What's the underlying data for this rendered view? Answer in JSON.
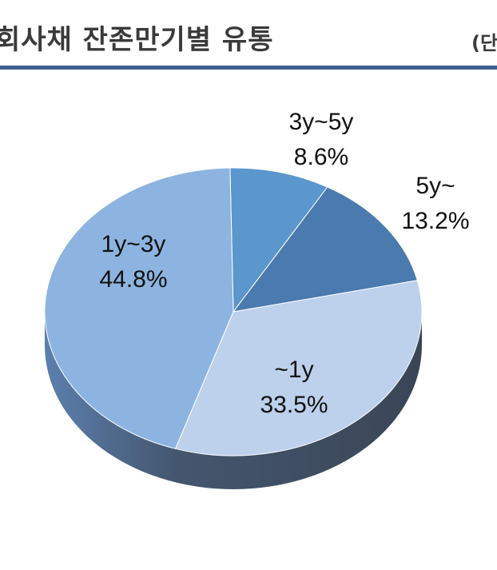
{
  "header": {
    "title": "회사채 잔존만기별 유통",
    "unit_label": "(단"
  },
  "colors": {
    "accent_rule": "#3f5f8f"
  },
  "chart_data": {
    "type": "pie",
    "title": "회사채 잔존만기별 유통",
    "start_angle_deg": -1,
    "slices": [
      {
        "label": "3y~5y",
        "value_label": "8.6%",
        "value": 8.6,
        "color": "#5b96cc"
      },
      {
        "label": "5y~",
        "value_label": "13.2%",
        "value": 13.2,
        "color": "#4a7aae"
      },
      {
        "label": "~1y",
        "value_label": "33.5%",
        "value": 33.5,
        "color": "#bdd0ec"
      },
      {
        "label": "1y~3y",
        "value_label": "44.8%",
        "value": 44.8,
        "color": "#8db4e0"
      }
    ]
  }
}
